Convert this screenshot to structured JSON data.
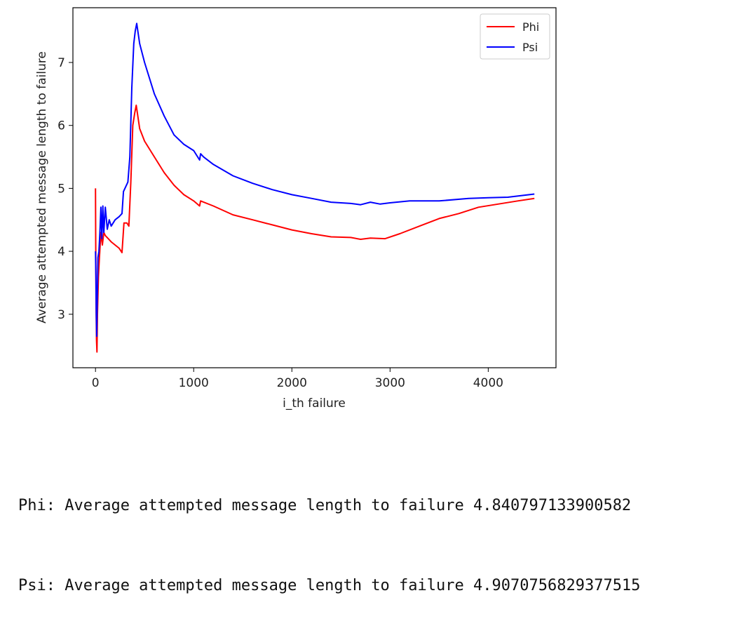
{
  "chart_data": {
    "type": "line",
    "title": "",
    "xlabel": "i_th failure",
    "ylabel": "Average attempted message length to failure",
    "xlim": [
      -230,
      4690
    ],
    "ylim": [
      2.15,
      7.87
    ],
    "xticks": [
      0,
      1000,
      2000,
      3000,
      4000
    ],
    "yticks": [
      3,
      4,
      5,
      6,
      7
    ],
    "grid": false,
    "legend": "top-right",
    "series": [
      {
        "name": "Phi",
        "color": "#ff0000",
        "points": [
          [
            0,
            5.0
          ],
          [
            2,
            4.2
          ],
          [
            6,
            3.2
          ],
          [
            10,
            2.6
          ],
          [
            15,
            2.4
          ],
          [
            20,
            3.0
          ],
          [
            30,
            3.6
          ],
          [
            40,
            3.9
          ],
          [
            55,
            4.3
          ],
          [
            70,
            4.1
          ],
          [
            85,
            4.3
          ],
          [
            100,
            4.25
          ],
          [
            130,
            4.2
          ],
          [
            160,
            4.15
          ],
          [
            200,
            4.1
          ],
          [
            240,
            4.05
          ],
          [
            270,
            3.98
          ],
          [
            290,
            4.45
          ],
          [
            320,
            4.45
          ],
          [
            340,
            4.4
          ],
          [
            360,
            5.1
          ],
          [
            380,
            6.0
          ],
          [
            400,
            6.2
          ],
          [
            415,
            6.32
          ],
          [
            450,
            5.95
          ],
          [
            500,
            5.75
          ],
          [
            600,
            5.5
          ],
          [
            700,
            5.25
          ],
          [
            800,
            5.05
          ],
          [
            900,
            4.9
          ],
          [
            1000,
            4.8
          ],
          [
            1060,
            4.72
          ],
          [
            1070,
            4.8
          ],
          [
            1200,
            4.72
          ],
          [
            1400,
            4.58
          ],
          [
            1600,
            4.5
          ],
          [
            1800,
            4.42
          ],
          [
            2000,
            4.34
          ],
          [
            2200,
            4.28
          ],
          [
            2400,
            4.23
          ],
          [
            2600,
            4.22
          ],
          [
            2700,
            4.19
          ],
          [
            2800,
            4.21
          ],
          [
            2950,
            4.2
          ],
          [
            3100,
            4.28
          ],
          [
            3300,
            4.4
          ],
          [
            3500,
            4.52
          ],
          [
            3700,
            4.6
          ],
          [
            3900,
            4.7
          ],
          [
            4100,
            4.75
          ],
          [
            4300,
            4.8
          ],
          [
            4470,
            4.84
          ]
        ]
      },
      {
        "name": "Psi",
        "color": "#0000ff",
        "points": [
          [
            0,
            4.0
          ],
          [
            4,
            3.6
          ],
          [
            8,
            3.0
          ],
          [
            12,
            2.65
          ],
          [
            18,
            3.2
          ],
          [
            25,
            3.9
          ],
          [
            35,
            4.0
          ],
          [
            45,
            4.3
          ],
          [
            55,
            4.7
          ],
          [
            65,
            4.2
          ],
          [
            75,
            4.72
          ],
          [
            85,
            4.3
          ],
          [
            100,
            4.7
          ],
          [
            120,
            4.35
          ],
          [
            140,
            4.5
          ],
          [
            160,
            4.4
          ],
          [
            200,
            4.5
          ],
          [
            240,
            4.55
          ],
          [
            270,
            4.6
          ],
          [
            285,
            4.95
          ],
          [
            300,
            5.0
          ],
          [
            330,
            5.1
          ],
          [
            350,
            5.5
          ],
          [
            370,
            6.6
          ],
          [
            390,
            7.3
          ],
          [
            405,
            7.5
          ],
          [
            420,
            7.62
          ],
          [
            450,
            7.3
          ],
          [
            500,
            7.0
          ],
          [
            600,
            6.5
          ],
          [
            700,
            6.15
          ],
          [
            800,
            5.85
          ],
          [
            900,
            5.7
          ],
          [
            1000,
            5.6
          ],
          [
            1060,
            5.45
          ],
          [
            1070,
            5.55
          ],
          [
            1100,
            5.5
          ],
          [
            1200,
            5.38
          ],
          [
            1400,
            5.2
          ],
          [
            1600,
            5.08
          ],
          [
            1800,
            4.98
          ],
          [
            2000,
            4.9
          ],
          [
            2200,
            4.84
          ],
          [
            2400,
            4.78
          ],
          [
            2600,
            4.76
          ],
          [
            2700,
            4.74
          ],
          [
            2800,
            4.78
          ],
          [
            2900,
            4.75
          ],
          [
            3000,
            4.77
          ],
          [
            3200,
            4.8
          ],
          [
            3500,
            4.8
          ],
          [
            3800,
            4.84
          ],
          [
            4000,
            4.85
          ],
          [
            4200,
            4.86
          ],
          [
            4470,
            4.91
          ]
        ]
      }
    ]
  },
  "output": {
    "phi_line": "Phi: Average attempted message length to failure 4.840797133900582",
    "psi_line": "Psi: Average attempted message length to failure 4.9070756829377515"
  }
}
